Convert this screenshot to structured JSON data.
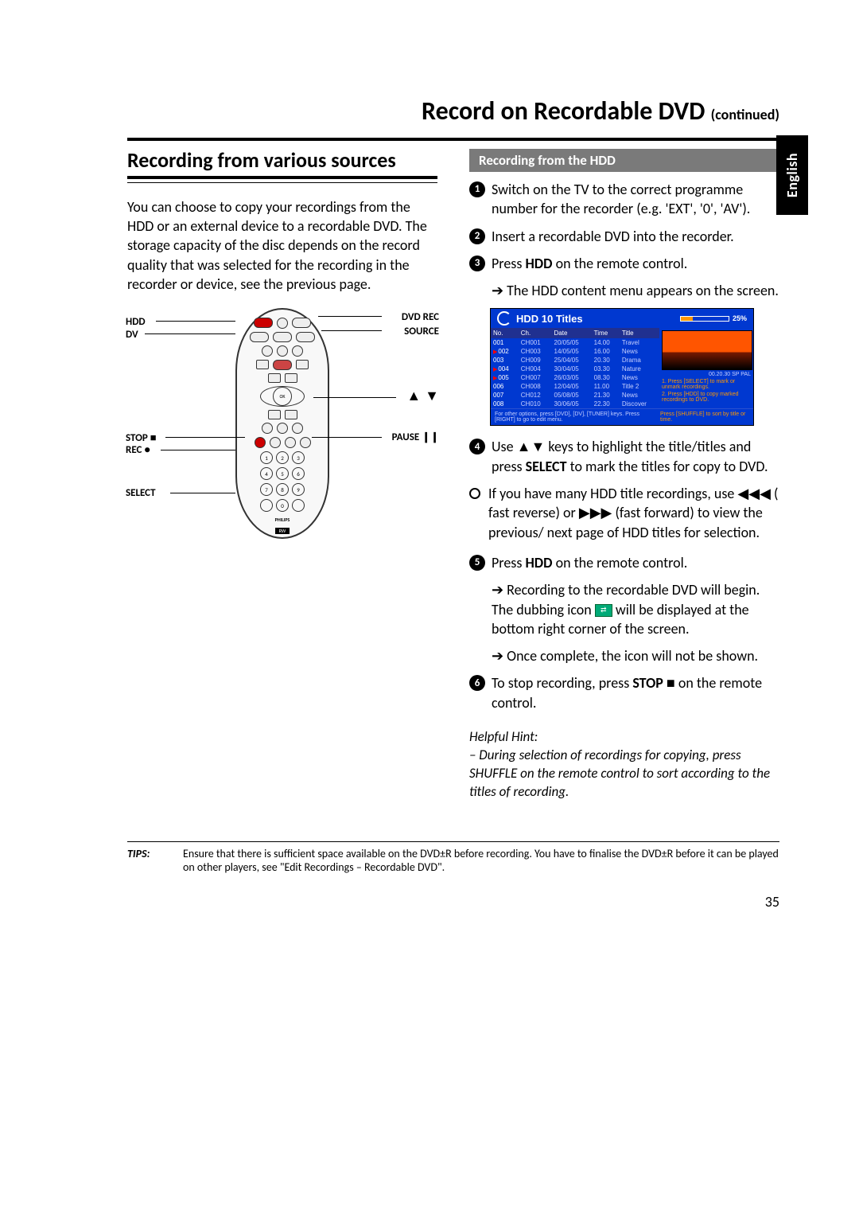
{
  "page": {
    "title": "Record on Recordable DVD",
    "continued": "(continued)",
    "number": "35",
    "language_tab": "English"
  },
  "left": {
    "heading": "Recording from various sources",
    "intro": "You can choose to copy your recordings from the HDD or an external device to a recordable DVD. The storage capacity of the disc depends on the record quality that was selected for the recording in the recorder or device, see the previous page."
  },
  "remote_labels": {
    "hdd": "HDD",
    "dv": "DV",
    "stop": "STOP ■",
    "rec": "REC ●",
    "select": "SELECT",
    "dvd_rec": "DVD REC",
    "source": "SOURCE",
    "arrows": "▲ ▼",
    "pause": "PAUSE ❙❙",
    "brand": "PHILIPS"
  },
  "right": {
    "subheading": "Recording from the HDD",
    "step1": "Switch on the TV to the correct programme number for the recorder (e.g. 'EXT', '0', 'AV').",
    "step2": "Insert a recordable DVD into the recorder.",
    "step3_a": "Press ",
    "step3_b": "HDD",
    "step3_c": " on the remote control.",
    "step3_arrow": "The HDD content menu appears on the screen.",
    "step4_a": "Use ",
    "step4_keys": "▲▼",
    "step4_b": " keys to highlight the title/titles and press ",
    "step4_c": "SELECT",
    "step4_d": " to mark the titles for copy to DVD.",
    "bullet_a": "If you have many HDD title recordings, use ",
    "bullet_rev": "◀◀◀",
    "bullet_b": " ( fast reverse) or ",
    "bullet_fwd": "▶▶▶",
    "bullet_c": " (fast forward) to view the previous/ next page of HDD titles for selection.",
    "step5_a": "Press ",
    "step5_b": "HDD",
    "step5_c": " on the remote control.",
    "step5_arrow1_a": "Recording to the recordable DVD will begin. The dubbing icon ",
    "step5_arrow1_b": " will be displayed at the bottom right corner of the screen.",
    "step5_arrow2": "Once complete, the icon will not be shown.",
    "step6_a": "To stop recording, press ",
    "step6_b": "STOP ■",
    "step6_c": "  on the remote control.",
    "hint_title": "Helpful Hint:",
    "hint_body": "– During selection of recordings for copying, press SHUFFLE on the remote control to sort according to the titles of recording."
  },
  "hdd": {
    "header": "HDD  10 Titles",
    "progress_pct": 25,
    "progress_label": "25%",
    "cols": [
      "No.",
      "Ch.",
      "Date",
      "Time",
      "Title"
    ],
    "rows": [
      [
        "001",
        "CH001",
        "20/05/05",
        "14.00",
        "Travel"
      ],
      [
        "002",
        "CH003",
        "14/05/05",
        "16.00",
        "News"
      ],
      [
        "003",
        "CH009",
        "25/04/05",
        "20.30",
        "Drama"
      ],
      [
        "004",
        "CH004",
        "30/04/05",
        "03.30",
        "Nature"
      ],
      [
        "005",
        "CH007",
        "26/03/05",
        "08.30",
        "News"
      ],
      [
        "006",
        "CH008",
        "12/04/05",
        "11.00",
        "Title 2"
      ],
      [
        "007",
        "CH012",
        "05/08/05",
        "21.30",
        "News"
      ],
      [
        "008",
        "CH010",
        "30/06/05",
        "22.30",
        "Discover"
      ]
    ],
    "marked": [
      1,
      3,
      4
    ],
    "thumb_meta": "00.20.30  SP  PAL",
    "side_tip1": "1. Press [SELECT] to mark or unmark recordings.",
    "side_tip2": "2. Press [HDD] to copy marked recordings to DVD.",
    "foot_left": "For other options, press [DVD], [DV], [TUNER] keys. Press [RIGHT] to go to edit menu.",
    "foot_right": "Press [SHUFFLE] to sort by title or time."
  },
  "tips": {
    "label": "TIPS:",
    "text": "Ensure that there is sufficient space available on the DVD±R before recording. You have to finalise the DVD±R before it can be played on other players, see \"Edit Recordings – Recordable DVD\"."
  },
  "colors": {
    "lang_tab_bg": "#000000",
    "subhead_bg": "#7a7a7a",
    "hdd_blue": "#0038d0",
    "hdd_orange": "#ff9800"
  }
}
